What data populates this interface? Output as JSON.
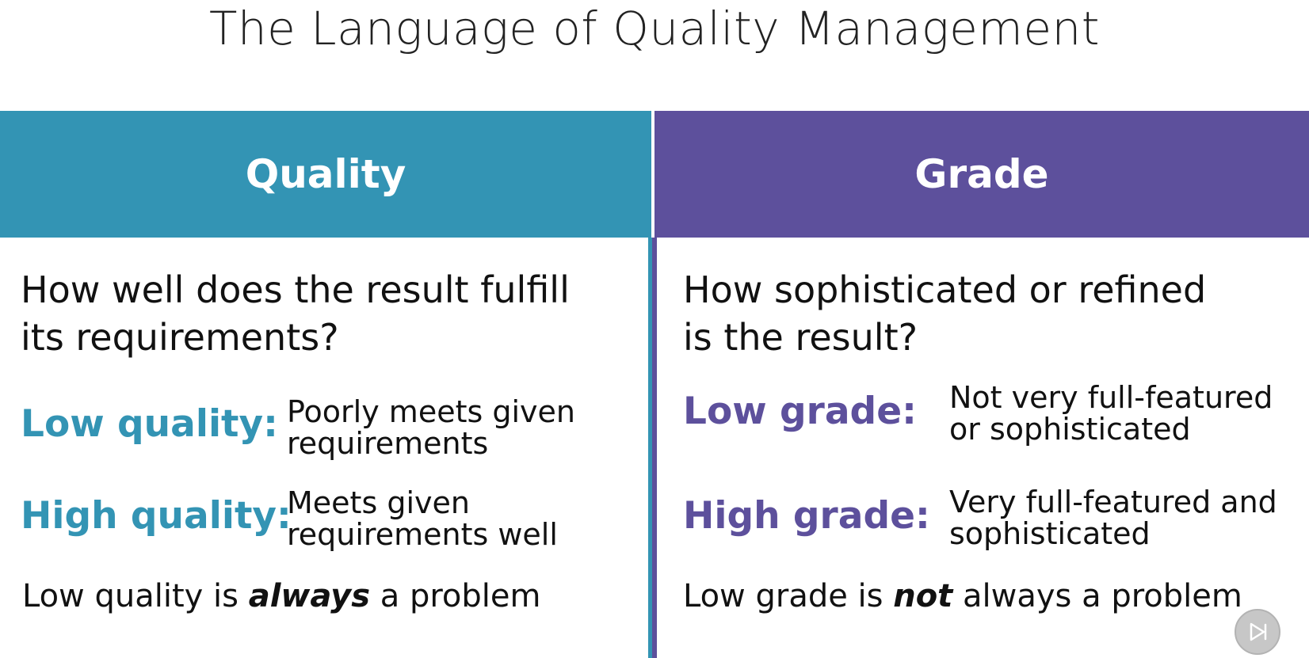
{
  "title": "The Language of Quality Management",
  "quality": {
    "header": "Quality",
    "question": [
      "How well does the result fulfill",
      "its requirements?"
    ],
    "low_term": "Low quality:",
    "low_desc": [
      "Poorly meets given",
      "requirements"
    ],
    "high_term": "High quality:",
    "high_desc": [
      "Meets given",
      "requirements well"
    ],
    "statement_before": "Low quality is ",
    "statement_emphasis": "always",
    "statement_after": " a problem"
  },
  "grade": {
    "header": "Grade",
    "question": [
      "How sophisticated or refined",
      "is the result?"
    ],
    "low_term": "Low grade:",
    "low_desc": [
      "Not very full-featured",
      "or sophisticated"
    ],
    "high_term": "High grade:",
    "high_desc": [
      "Very full-featured and",
      "sophisticated"
    ],
    "statement_before": "Low grade is ",
    "statement_emphasis": "not",
    "statement_after": " always a problem"
  },
  "colors": {
    "quality_accent": "#3394b4",
    "grade_accent": "#5d509c"
  },
  "icons": {
    "player_control": "play-next-icon"
  }
}
